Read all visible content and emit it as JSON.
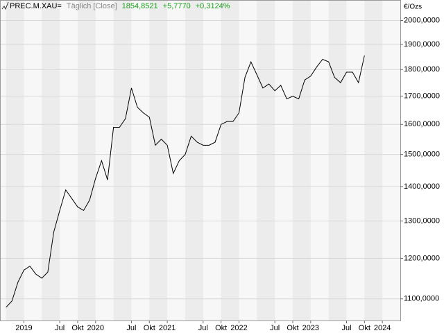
{
  "chart_data": {
    "type": "line",
    "title": "PREC.M.XAU=",
    "subtitle": "Täglich [Close]",
    "last_value": "1854,8521",
    "change": "+5,7770",
    "change_percent": "+0,3124%",
    "y_axis_label": "€/Ozs",
    "log_scale": true,
    "grid": true,
    "color": "#000000",
    "x": [
      "2018-10",
      "2018-11",
      "2018-12",
      "2019-01",
      "2019-02",
      "2019-03",
      "2019-04",
      "2019-05",
      "2019-06",
      "2019-07",
      "2019-08",
      "2019-09",
      "2019-10",
      "2019-11",
      "2019-12",
      "2020-01",
      "2020-02",
      "2020-03",
      "2020-04",
      "2020-05",
      "2020-06",
      "2020-07",
      "2020-08",
      "2020-09",
      "2020-10",
      "2020-11",
      "2020-12",
      "2021-01",
      "2021-02",
      "2021-03",
      "2021-04",
      "2021-05",
      "2021-06",
      "2021-07",
      "2021-08",
      "2021-09",
      "2021-10",
      "2021-11",
      "2021-12",
      "2022-01",
      "2022-02",
      "2022-03",
      "2022-04",
      "2022-05",
      "2022-06",
      "2022-07",
      "2022-08",
      "2022-09",
      "2022-10",
      "2022-11",
      "2022-12",
      "2023-01",
      "2023-02",
      "2023-03",
      "2023-04",
      "2023-05",
      "2023-06",
      "2023-07",
      "2023-08",
      "2023-09",
      "2023-10"
    ],
    "values": [
      1080,
      1095,
      1140,
      1170,
      1180,
      1160,
      1150,
      1165,
      1270,
      1330,
      1390,
      1365,
      1340,
      1330,
      1360,
      1425,
      1480,
      1420,
      1590,
      1590,
      1620,
      1730,
      1660,
      1640,
      1625,
      1530,
      1550,
      1530,
      1440,
      1480,
      1500,
      1560,
      1540,
      1530,
      1530,
      1540,
      1600,
      1610,
      1610,
      1640,
      1770,
      1830,
      1780,
      1730,
      1745,
      1720,
      1740,
      1690,
      1700,
      1690,
      1760,
      1775,
      1810,
      1840,
      1830,
      1770,
      1750,
      1790,
      1790,
      1750,
      1855
    ],
    "xlim": [
      "2018-09",
      "2024-04"
    ],
    "xticks": [
      {
        "value": "2019-01",
        "label": "2019"
      },
      {
        "value": "2019-07",
        "label": "Jul"
      },
      {
        "value": "2019-10",
        "label": "Okt"
      },
      {
        "value": "2020-01",
        "label": "2020"
      },
      {
        "value": "2020-07",
        "label": "Jul"
      },
      {
        "value": "2020-10",
        "label": "Okt"
      },
      {
        "value": "2021-01",
        "label": "2021"
      },
      {
        "value": "2021-07",
        "label": "Jul"
      },
      {
        "value": "2021-10",
        "label": "Okt"
      },
      {
        "value": "2022-01",
        "label": "2022"
      },
      {
        "value": "2022-07",
        "label": "Jul"
      },
      {
        "value": "2022-10",
        "label": "Okt"
      },
      {
        "value": "2023-01",
        "label": "2023"
      },
      {
        "value": "2023-07",
        "label": "Jul"
      },
      {
        "value": "2023-10",
        "label": "Okt"
      },
      {
        "value": "2024-01",
        "label": "2024"
      }
    ],
    "ylim": [
      1050,
      2090
    ],
    "yticks": [
      {
        "value": 1100,
        "label": "1100,0000"
      },
      {
        "value": 1200,
        "label": "1200,0000"
      },
      {
        "value": 1300,
        "label": "1300,0000"
      },
      {
        "value": 1400,
        "label": "1400,0000"
      },
      {
        "value": 1500,
        "label": "1500,0000"
      },
      {
        "value": 1600,
        "label": "1600,0000"
      },
      {
        "value": 1700,
        "label": "1700,0000"
      },
      {
        "value": 1800,
        "label": "1800,0000"
      },
      {
        "value": 1900,
        "label": "1900,0000"
      },
      {
        "value": 2000,
        "label": "2000,0000"
      }
    ]
  }
}
